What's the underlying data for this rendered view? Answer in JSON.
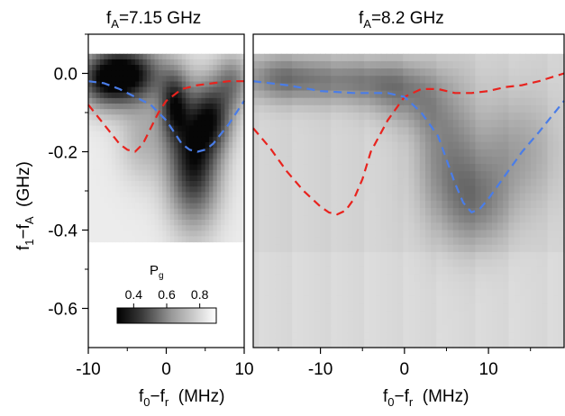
{
  "chart_data": [
    {
      "type": "heatmap",
      "title_main": "f",
      "title_sub": "A",
      "title_rest": "=7.15 GHz",
      "xlim": [
        -10,
        10
      ],
      "ylim": [
        -0.7,
        0.1
      ],
      "xticks": [
        "-10",
        "0",
        "10"
      ],
      "yticks": [
        {
          "v": 0.0,
          "label": "0.0"
        },
        {
          "v": -0.2,
          "label": "-0.2"
        },
        {
          "v": -0.4,
          "label": "-0.4"
        },
        {
          "v": -0.6,
          "label": "-0.6"
        }
      ],
      "xlabel": {
        "main": "f",
        "sub": "0",
        "mid": "−f",
        "sub2": "r",
        "rest": "  (MHz)"
      },
      "ylabel": {
        "main": "f",
        "sub": "1",
        "mid": "−f",
        "sub2": "A",
        "rest": "  (GHz)"
      },
      "data_extent": {
        "x": [
          -10,
          10
        ],
        "y": [
          -0.43,
          0.05
        ]
      },
      "series": [
        {
          "color": "#e8231e",
          "x": [
            -10,
            -8,
            -6,
            -5,
            -4,
            -3,
            -2,
            -1,
            0,
            2,
            4,
            6,
            8,
            10
          ],
          "y": [
            -0.08,
            -0.13,
            -0.18,
            -0.195,
            -0.2,
            -0.18,
            -0.14,
            -0.1,
            -0.07,
            -0.04,
            -0.03,
            -0.025,
            -0.02,
            -0.02
          ]
        },
        {
          "color": "#4a7de8",
          "x": [
            -10,
            -8,
            -6,
            -4,
            -2,
            0,
            1,
            2,
            3,
            4,
            5,
            6,
            8,
            10
          ],
          "y": [
            -0.02,
            -0.025,
            -0.04,
            -0.06,
            -0.08,
            -0.12,
            -0.15,
            -0.18,
            -0.195,
            -0.2,
            -0.195,
            -0.18,
            -0.13,
            -0.07
          ]
        }
      ],
      "colorbar": {
        "label": "P",
        "label_sub": "g",
        "ticks": [
          "0.4",
          "0.6",
          "0.8"
        ],
        "range": [
          0.3,
          0.9
        ]
      }
    },
    {
      "type": "heatmap",
      "title_main": "f",
      "title_sub": "A",
      "title_rest": "=8.2 GHz",
      "xlim": [
        -18,
        19
      ],
      "ylim": [
        -0.7,
        0.1
      ],
      "xticks": [
        "-10",
        "0",
        "10"
      ],
      "xlabel": {
        "main": "f",
        "sub": "0",
        "mid": "−f",
        "sub2": "r",
        "rest": "  (MHz)"
      },
      "data_extent": {
        "x": [
          -18,
          19
        ],
        "y": [
          -0.7,
          0.05
        ]
      },
      "series": [
        {
          "color": "#e8231e",
          "x": [
            -18,
            -16,
            -14,
            -12,
            -10,
            -9,
            -8,
            -7,
            -6,
            -5,
            -4,
            -2,
            0,
            2,
            4,
            6,
            8,
            10,
            12,
            14,
            16,
            19
          ],
          "y": [
            -0.14,
            -0.19,
            -0.25,
            -0.3,
            -0.34,
            -0.355,
            -0.36,
            -0.35,
            -0.32,
            -0.27,
            -0.2,
            -0.12,
            -0.06,
            -0.04,
            -0.04,
            -0.05,
            -0.05,
            -0.045,
            -0.035,
            -0.03,
            -0.02,
            0.0
          ]
        },
        {
          "color": "#4a7de8",
          "x": [
            -18,
            -14,
            -10,
            -6,
            -2,
            0,
            2,
            4,
            5,
            6,
            7,
            8,
            9,
            10,
            12,
            14,
            16,
            19
          ],
          "y": [
            -0.02,
            -0.03,
            -0.045,
            -0.05,
            -0.05,
            -0.06,
            -0.1,
            -0.16,
            -0.22,
            -0.28,
            -0.33,
            -0.355,
            -0.345,
            -0.32,
            -0.26,
            -0.2,
            -0.15,
            -0.07
          ]
        }
      ]
    }
  ]
}
